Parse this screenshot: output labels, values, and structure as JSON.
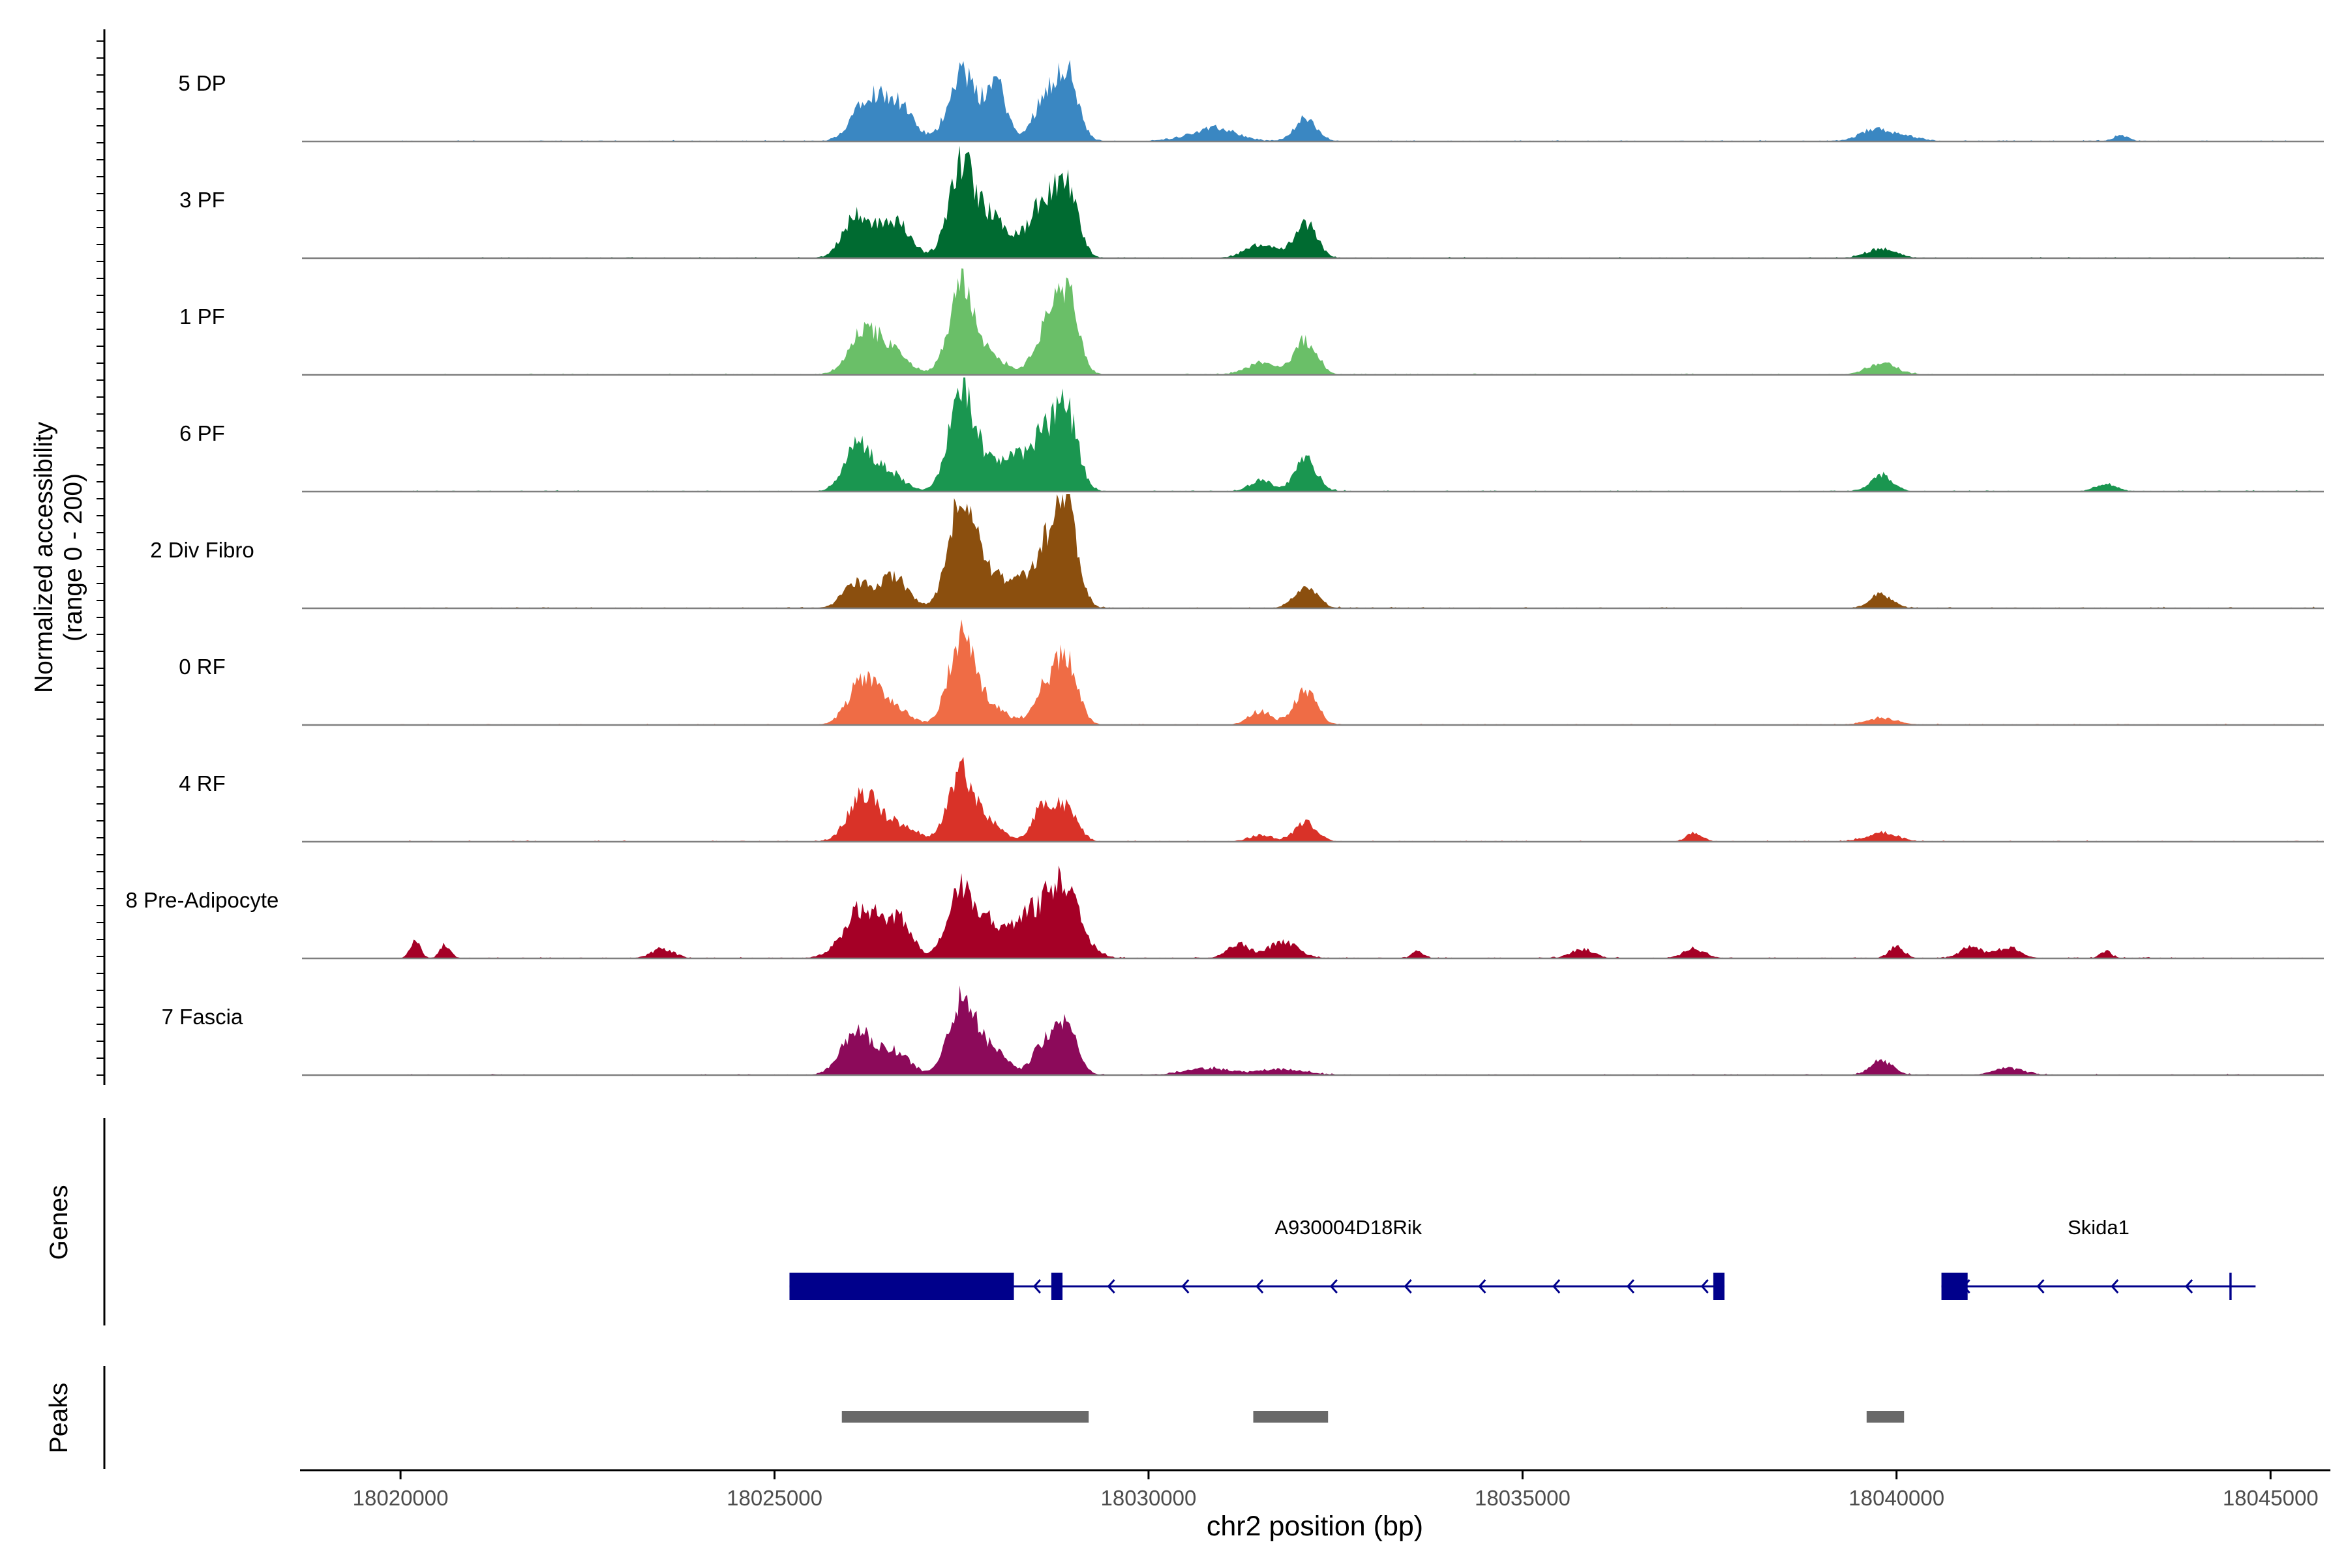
{
  "chart_data": {
    "type": "area",
    "title": "",
    "ylabel_line1": "Normalized accessibility",
    "ylabel_line2": "(range 0 - 200)",
    "xlabel": "chr2 position (bp)",
    "xlim": [
      18018700,
      18045800
    ],
    "ylim": [
      0,
      200
    ],
    "x_ticks": [
      18020000,
      18025000,
      18030000,
      18035000,
      18040000,
      18045000
    ],
    "x_tick_labels": [
      "18020000",
      "18025000",
      "18030000",
      "18035000",
      "18040000",
      "18045000"
    ],
    "region": [
      18020000,
      18045700
    ],
    "series": [
      {
        "name": "5 DP",
        "color": "#3a87c2",
        "peaks": [
          [
            18026200,
            0.33,
            180
          ],
          [
            18026600,
            0.36,
            220
          ],
          [
            18027500,
            0.62,
            170
          ],
          [
            18027900,
            0.26,
            130
          ],
          [
            18028000,
            0.3,
            130
          ],
          [
            18028600,
            0.34,
            150
          ],
          [
            18028900,
            0.6,
            150
          ],
          [
            18030700,
            0.06,
            300
          ],
          [
            18031000,
            0.07,
            250
          ],
          [
            18032100,
            0.19,
            150
          ],
          [
            18039700,
            0.1,
            200
          ],
          [
            18040100,
            0.04,
            200
          ],
          [
            18043000,
            0.05,
            100
          ]
        ]
      },
      {
        "name": "3 PF",
        "color": "#006b31",
        "peaks": [
          [
            18026100,
            0.38,
            180
          ],
          [
            18026600,
            0.33,
            200
          ],
          [
            18027500,
            0.8,
            170
          ],
          [
            18027900,
            0.33,
            200
          ],
          [
            18028400,
            0.16,
            200
          ],
          [
            18028600,
            0.34,
            150
          ],
          [
            18028900,
            0.62,
            150
          ],
          [
            18031500,
            0.12,
            200
          ],
          [
            18032100,
            0.3,
            150
          ],
          [
            18039800,
            0.08,
            200
          ]
        ]
      },
      {
        "name": "1 PF",
        "color": "#6abf68",
        "peaks": [
          [
            18026200,
            0.38,
            200
          ],
          [
            18026600,
            0.18,
            200
          ],
          [
            18027500,
            0.75,
            170
          ],
          [
            18027900,
            0.16,
            200
          ],
          [
            18028600,
            0.34,
            150
          ],
          [
            18028900,
            0.72,
            150
          ],
          [
            18031500,
            0.1,
            200
          ],
          [
            18032100,
            0.3,
            150
          ],
          [
            18039800,
            0.1,
            200
          ]
        ]
      },
      {
        "name": "6 PF",
        "color": "#1a9650",
        "peaks": [
          [
            18026100,
            0.42,
            170
          ],
          [
            18026500,
            0.18,
            200
          ],
          [
            18027500,
            0.78,
            170
          ],
          [
            18027900,
            0.22,
            300
          ],
          [
            18028300,
            0.2,
            200
          ],
          [
            18028600,
            0.38,
            150
          ],
          [
            18028900,
            0.7,
            150
          ],
          [
            18031500,
            0.1,
            150
          ],
          [
            18032100,
            0.28,
            150
          ],
          [
            18039800,
            0.14,
            150
          ],
          [
            18042800,
            0.06,
            150
          ]
        ]
      },
      {
        "name": "2 Div Fibro",
        "color": "#8b4f0e",
        "peaks": [
          [
            18026100,
            0.22,
            180
          ],
          [
            18026600,
            0.28,
            180
          ],
          [
            18027500,
            0.95,
            170
          ],
          [
            18027900,
            0.25,
            250
          ],
          [
            18028400,
            0.16,
            250
          ],
          [
            18028700,
            0.42,
            200
          ],
          [
            18028900,
            0.7,
            150
          ],
          [
            18032100,
            0.2,
            150
          ],
          [
            18039800,
            0.12,
            150
          ]
        ]
      },
      {
        "name": "0 RF",
        "color": "#ef6c45",
        "peaks": [
          [
            18026200,
            0.4,
            200
          ],
          [
            18026600,
            0.14,
            200
          ],
          [
            18027500,
            0.75,
            170
          ],
          [
            18027900,
            0.16,
            200
          ],
          [
            18028600,
            0.3,
            150
          ],
          [
            18028900,
            0.55,
            150
          ],
          [
            18031500,
            0.12,
            150
          ],
          [
            18032100,
            0.3,
            150
          ],
          [
            18039800,
            0.06,
            200
          ]
        ]
      },
      {
        "name": "4 RF",
        "color": "#d93228",
        "peaks": [
          [
            18026200,
            0.42,
            200
          ],
          [
            18026700,
            0.14,
            200
          ],
          [
            18027500,
            0.62,
            170
          ],
          [
            18027900,
            0.16,
            150
          ],
          [
            18028600,
            0.3,
            150
          ],
          [
            18028900,
            0.28,
            150
          ],
          [
            18031500,
            0.06,
            150
          ],
          [
            18032100,
            0.16,
            150
          ],
          [
            18037300,
            0.08,
            100
          ],
          [
            18039800,
            0.08,
            200
          ]
        ]
      },
      {
        "name": "8 Pre-Adipocyte",
        "color": "#a50026",
        "peaks": [
          [
            18020200,
            0.15,
            70
          ],
          [
            18020600,
            0.12,
            70
          ],
          [
            18023500,
            0.08,
            150
          ],
          [
            18026200,
            0.45,
            250
          ],
          [
            18026700,
            0.3,
            150
          ],
          [
            18027500,
            0.6,
            180
          ],
          [
            18027900,
            0.3,
            150
          ],
          [
            18028300,
            0.3,
            150
          ],
          [
            18028800,
            0.68,
            250
          ],
          [
            18031200,
            0.12,
            150
          ],
          [
            18031800,
            0.14,
            200
          ],
          [
            18033600,
            0.06,
            80
          ],
          [
            18035800,
            0.08,
            150
          ],
          [
            18037300,
            0.08,
            150
          ],
          [
            18040000,
            0.1,
            100
          ],
          [
            18041000,
            0.1,
            150
          ],
          [
            18041500,
            0.1,
            150
          ],
          [
            18042800,
            0.06,
            80
          ]
        ]
      },
      {
        "name": "7 Fascia",
        "color": "#8c0a5a",
        "peaks": [
          [
            18026100,
            0.38,
            200
          ],
          [
            18026600,
            0.2,
            200
          ],
          [
            18027500,
            0.66,
            170
          ],
          [
            18027900,
            0.22,
            200
          ],
          [
            18028600,
            0.26,
            150
          ],
          [
            18028900,
            0.4,
            150
          ],
          [
            18030800,
            0.06,
            300
          ],
          [
            18031800,
            0.05,
            300
          ],
          [
            18039800,
            0.12,
            150
          ],
          [
            18041500,
            0.06,
            200
          ]
        ]
      }
    ],
    "genes": [
      {
        "name": "A930004D18Rik",
        "start": 18025200,
        "end": 18037700,
        "strand": "-",
        "exons": [
          [
            18025200,
            18028200
          ],
          [
            18028700,
            18028850
          ],
          [
            18037550,
            18037700
          ]
        ]
      },
      {
        "name": "Skida1",
        "start": 18040600,
        "end": 18044800,
        "strand": "-",
        "exons": [
          [
            18040600,
            18040950
          ],
          [
            18044450,
            18044480
          ]
        ]
      }
    ],
    "peaks_regions": [
      [
        18025900,
        18029200
      ],
      [
        18031400,
        18032400
      ],
      [
        18039600,
        18040100
      ]
    ],
    "gene_color": "#00008b",
    "peak_color": "#696969",
    "genes_label": "Genes",
    "peaks_label": "Peaks"
  }
}
